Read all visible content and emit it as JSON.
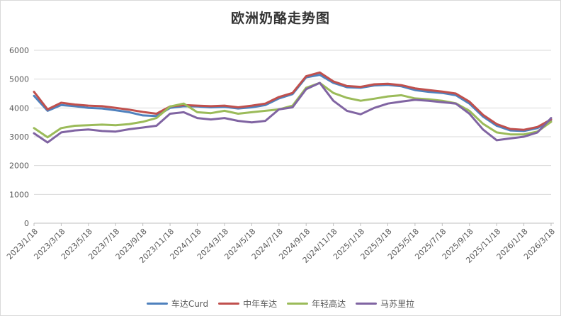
{
  "title": "欧洲奶酪走势图",
  "chart_data": {
    "type": "line",
    "x": [
      "2023/1/18",
      "2023/2/18",
      "2023/3/18",
      "2023/4/18",
      "2023/5/18",
      "2023/6/18",
      "2023/7/18",
      "2023/8/18",
      "2023/9/18",
      "2023/10/18",
      "2023/11/18",
      "2023/12/18",
      "2024/1/18",
      "2024/2/18",
      "2024/3/18",
      "2024/4/18",
      "2024/5/18",
      "2024/6/18",
      "2024/7/18",
      "2024/8/18",
      "2024/9/18",
      "2024/10/18",
      "2024/11/18",
      "2024/12/18",
      "2025/1/18",
      "2025/2/18",
      "2025/3/18",
      "2025/4/18",
      "2025/5/18",
      "2025/6/18",
      "2025/7/18",
      "2025/8/18",
      "2025/9/18",
      "2025/10/18",
      "2025/11/18",
      "2025/12/18",
      "2026/1/18",
      "2026/2/18",
      "2026/3/18"
    ],
    "xtick_labels": [
      "2023/1/18",
      "2023/3/18",
      "2023/5/18",
      "2023/7/18",
      "2023/9/18",
      "2023/11/18",
      "2024/1/18",
      "2024/3/18",
      "2024/5/18",
      "2024/7/18",
      "2024/9/18",
      "2024/11/18",
      "2025/1/18",
      "2025/3/18",
      "2025/5/18",
      "2025/7/18",
      "2025/9/18",
      "2025/11/18",
      "2026/1/18",
      "2026/3/18"
    ],
    "xtick_every": 2,
    "series": [
      {
        "name": "车达Curd",
        "color": "#4F81BD",
        "values": [
          4420,
          3900,
          4100,
          4060,
          4000,
          3980,
          3920,
          3850,
          3740,
          3720,
          4000,
          4060,
          4050,
          4020,
          4040,
          3980,
          4020,
          4100,
          4330,
          4480,
          5060,
          5150,
          4870,
          4720,
          4700,
          4780,
          4800,
          4750,
          4620,
          4560,
          4520,
          4440,
          4150,
          3700,
          3380,
          3220,
          3200,
          3300,
          3580
        ]
      },
      {
        "name": "中年车达",
        "color": "#C0504D",
        "values": [
          4560,
          3950,
          4180,
          4120,
          4080,
          4060,
          4000,
          3940,
          3860,
          3800,
          4050,
          4100,
          4080,
          4060,
          4080,
          4020,
          4080,
          4150,
          4380,
          4520,
          5100,
          5230,
          4920,
          4760,
          4730,
          4820,
          4840,
          4790,
          4680,
          4620,
          4570,
          4500,
          4220,
          3760,
          3440,
          3270,
          3240,
          3340,
          3600
        ]
      },
      {
        "name": "年轻高达",
        "color": "#9BBB59",
        "values": [
          3300,
          2980,
          3300,
          3380,
          3400,
          3420,
          3400,
          3440,
          3520,
          3650,
          4050,
          4150,
          3850,
          3820,
          3900,
          3800,
          3850,
          3900,
          3950,
          4080,
          4700,
          4870,
          4520,
          4350,
          4250,
          4320,
          4400,
          4440,
          4330,
          4300,
          4250,
          4160,
          3900,
          3450,
          3150,
          3080,
          3080,
          3180,
          3520
        ]
      },
      {
        "name": "马苏里拉",
        "color": "#8064A2",
        "values": [
          3120,
          2800,
          3150,
          3220,
          3250,
          3200,
          3180,
          3260,
          3320,
          3380,
          3800,
          3850,
          3650,
          3600,
          3650,
          3550,
          3500,
          3550,
          3950,
          4020,
          4650,
          4870,
          4250,
          3900,
          3780,
          4000,
          4150,
          4220,
          4280,
          4250,
          4200,
          4150,
          3800,
          3250,
          2880,
          2940,
          3000,
          3150,
          3650
        ]
      }
    ],
    "ylim": [
      0,
      6000
    ],
    "ytick_step": 1000,
    "ytick_labels": [
      "0",
      "1000",
      "2000",
      "3000",
      "4000",
      "5000",
      "6000"
    ],
    "grid": "horizontal",
    "legend_position": "bottom",
    "colors": {
      "gridline": "#d9d9d9",
      "axis": "#bfbfbf",
      "axis_text": "#595959",
      "title_text": "#333333"
    }
  }
}
